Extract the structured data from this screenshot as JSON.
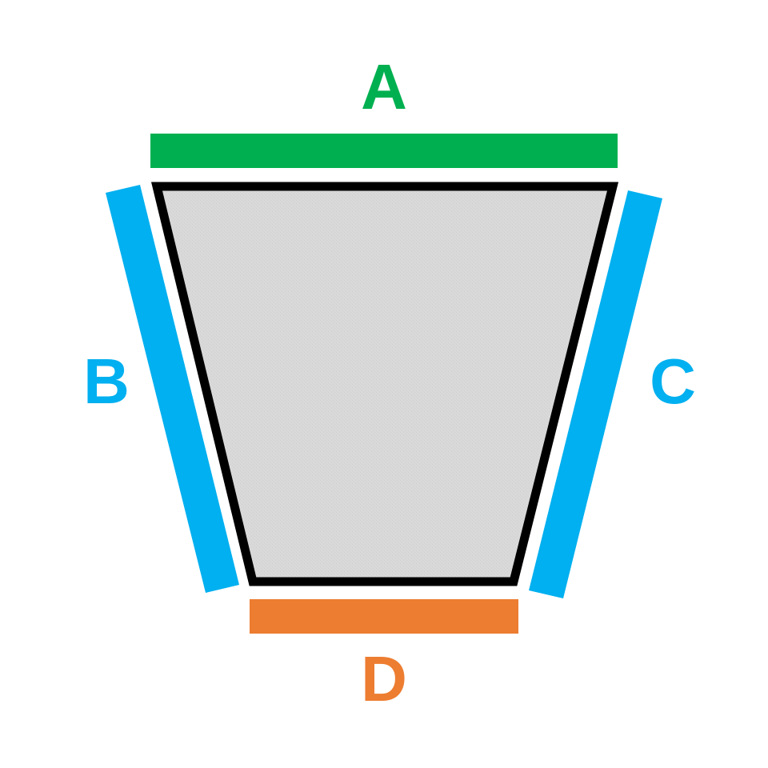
{
  "shape": {
    "type": "trapezoid",
    "fill_color": "#d9d9d9",
    "outline_color": "#000000"
  },
  "sides": {
    "top": {
      "label": "A",
      "color": "#00b050"
    },
    "left": {
      "label": "B",
      "color": "#00b0f0"
    },
    "right": {
      "label": "C",
      "color": "#00b0f0"
    },
    "bottom": {
      "label": "D",
      "color": "#ed7d31"
    }
  }
}
